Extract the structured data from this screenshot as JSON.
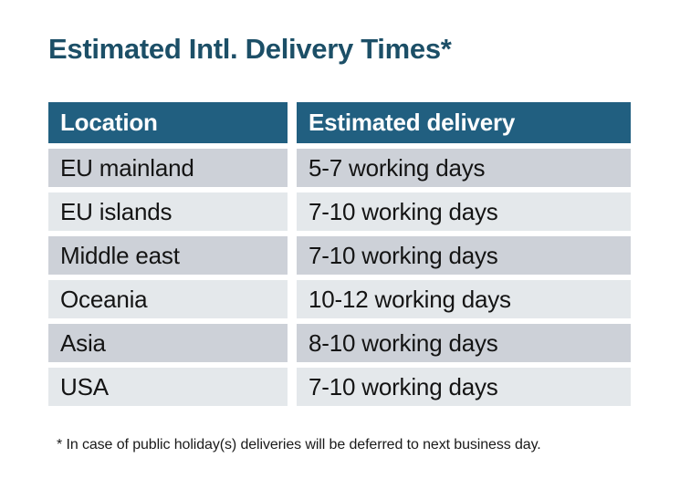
{
  "title": "Estimated Intl. Delivery Times*",
  "table": {
    "headers": [
      "Location",
      "Estimated delivery"
    ],
    "rows": [
      {
        "location": "EU mainland",
        "delivery": "5-7 working days"
      },
      {
        "location": "EU islands",
        "delivery": "7-10 working days"
      },
      {
        "location": "Middle east",
        "delivery": "7-10 working days"
      },
      {
        "location": "Oceania",
        "delivery": "10-12 working days"
      },
      {
        "location": "Asia",
        "delivery": "8-10 working days"
      },
      {
        "location": "USA",
        "delivery": "7-10 working days"
      }
    ]
  },
  "footnote": "* In case of public holiday(s) deliveries will be deferred to next business day.",
  "colors": {
    "page_bg": "#FFFFFF",
    "title_text": "#1C4F67",
    "header_bg": "#215F80",
    "header_text": "#FFFFFF",
    "row_odd_bg": "#CDD1D8",
    "row_even_bg": "#E4E8EB",
    "body_text": "#141414"
  }
}
